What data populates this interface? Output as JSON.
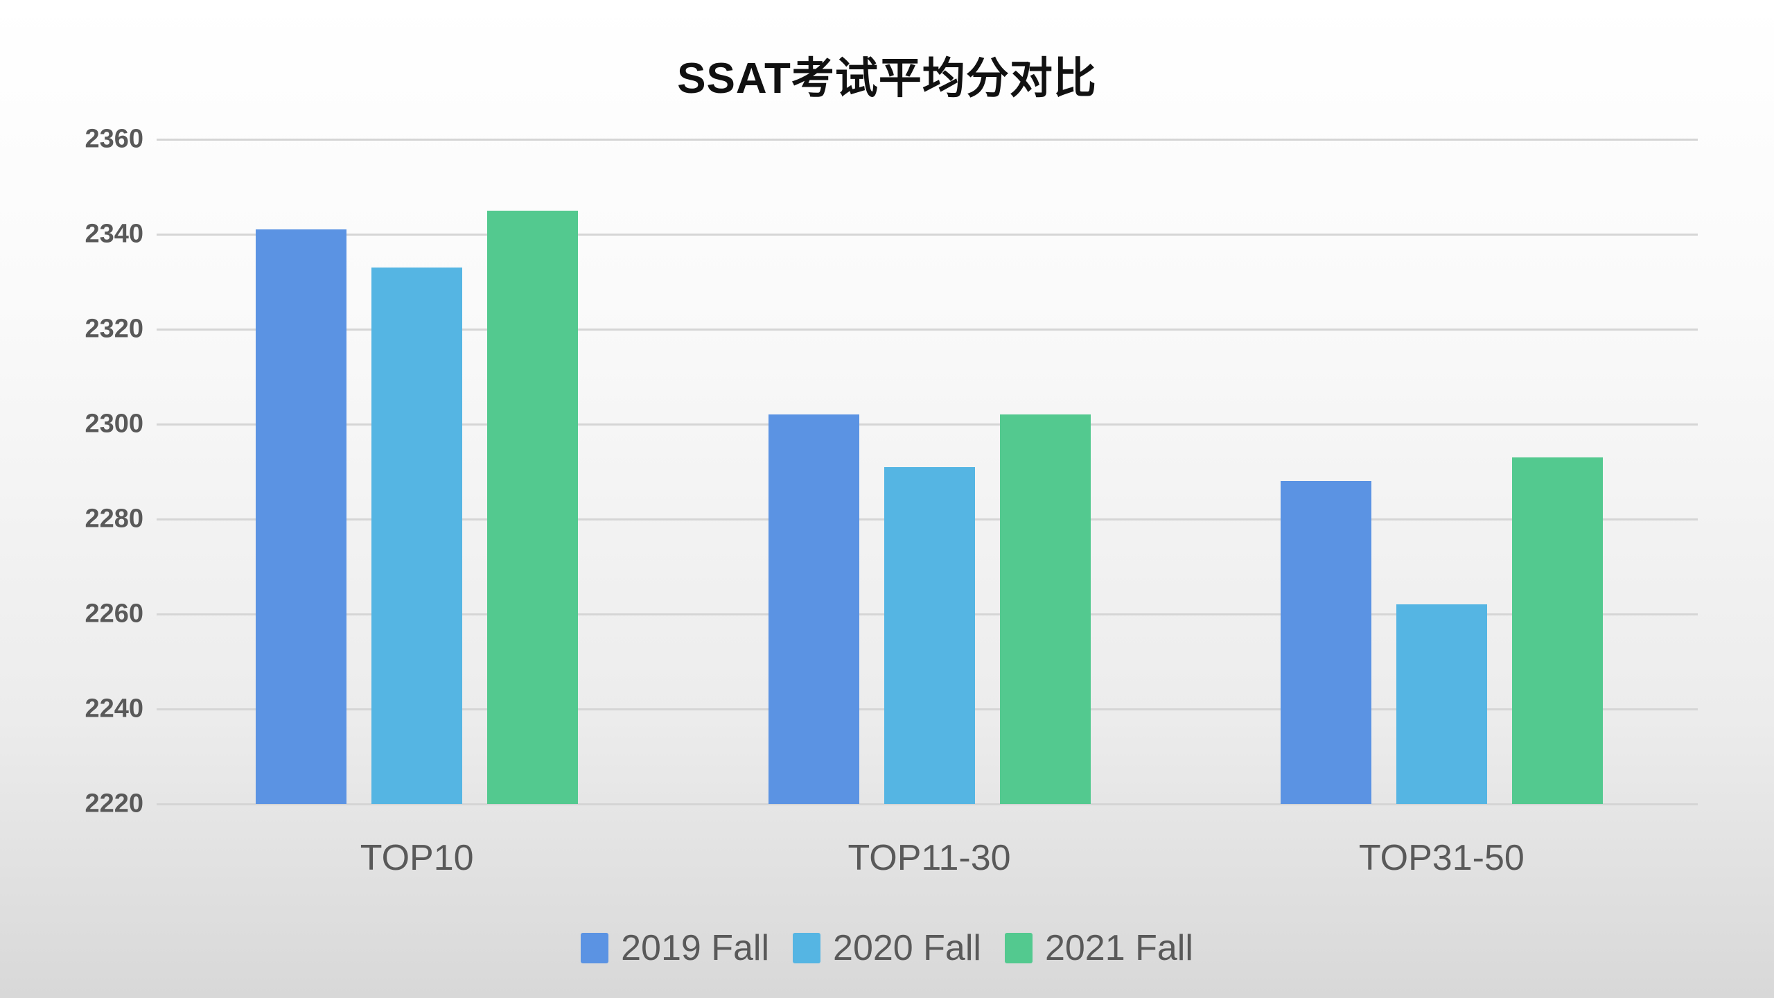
{
  "chart": {
    "title": "SSAT考试平均分对比"
  },
  "chart_data": {
    "type": "bar",
    "title": "SSAT考试平均分对比",
    "categories": [
      "TOP10",
      "TOP11-30",
      "TOP31-50"
    ],
    "series": [
      {
        "name": "2019 Fall",
        "color": "#5B93E3",
        "values": [
          2341,
          2302,
          2288
        ]
      },
      {
        "name": "2020 Fall",
        "color": "#55B5E3",
        "values": [
          2333,
          2291,
          2262
        ]
      },
      {
        "name": "2021 Fall",
        "color": "#53C98F",
        "values": [
          2345,
          2302,
          2293
        ]
      }
    ],
    "ylim": [
      2220,
      2360
    ],
    "y_ticks": [
      2220,
      2240,
      2260,
      2280,
      2300,
      2320,
      2340,
      2360
    ],
    "grid": true,
    "legend_position": "bottom",
    "xlabel": "",
    "ylabel": ""
  },
  "style": {
    "background_top": "#ffffff",
    "background_bottom": "#d8d8d8",
    "gridline_color": "#d5d5d5",
    "axis_label_color": "#595959",
    "title_color": "#111111"
  }
}
